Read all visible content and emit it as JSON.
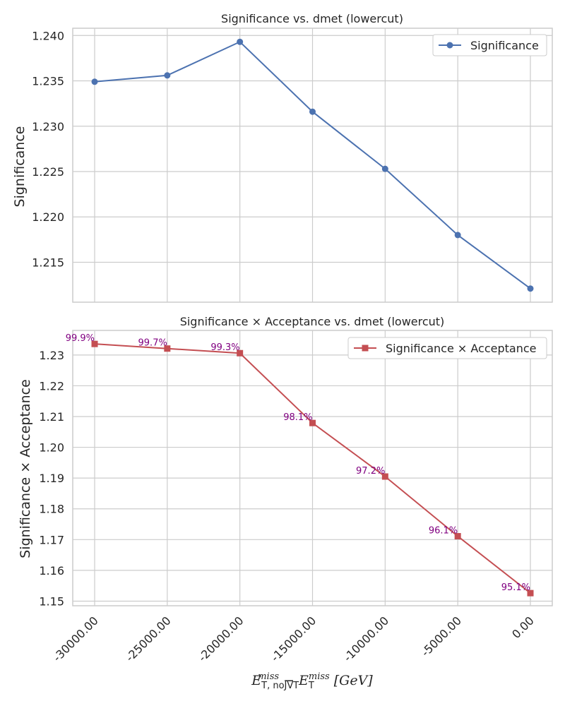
{
  "chart_data": [
    {
      "type": "line",
      "title": "Significance vs. dmet (lowercut)",
      "ylabel": "Significance",
      "x": [
        -30000,
        -25000,
        -20000,
        -15000,
        -10000,
        -5000,
        0
      ],
      "series": [
        {
          "name": "Significance",
          "values": [
            1.2349,
            1.2356,
            1.2393,
            1.2316,
            1.2253,
            1.218,
            1.2121
          ],
          "color": "#4c72b0",
          "marker": "circle"
        }
      ],
      "ylim": [
        1.2106,
        1.2408
      ],
      "yticks": [
        "1.215",
        "1.220",
        "1.225",
        "1.230",
        "1.235",
        "1.240"
      ],
      "grid": true,
      "legend_position": "top-right"
    },
    {
      "type": "line",
      "title": "Significance × Acceptance vs. dmet (lowercut)",
      "ylabel": "Significance × Acceptance",
      "x": [
        -30000,
        -25000,
        -20000,
        -15000,
        -10000,
        -5000,
        0
      ],
      "series": [
        {
          "name": "Significance × Acceptance",
          "values": [
            1.2336,
            1.2321,
            1.2306,
            1.2079,
            1.1905,
            1.1711,
            1.1526
          ],
          "color": "#c44e52",
          "marker": "square"
        }
      ],
      "annotations": [
        "99.9%",
        "99.7%",
        "99.3%",
        "98.1%",
        "97.2%",
        "96.1%",
        "95.1%"
      ],
      "annotation_color": "#800080",
      "ylim": [
        1.1485,
        1.238
      ],
      "yticks": [
        "1.15",
        "1.16",
        "1.17",
        "1.18",
        "1.19",
        "1.20",
        "1.21",
        "1.22",
        "1.23"
      ],
      "xticks": [
        "-30000.00",
        "-25000.00",
        "-20000.00",
        "-15000.00",
        "-10000.00",
        "-5000.00",
        "0.00"
      ],
      "xlabel": "E_T,noJVT^miss − E_T^miss [GeV]",
      "grid": true,
      "legend_position": "top-right"
    }
  ]
}
